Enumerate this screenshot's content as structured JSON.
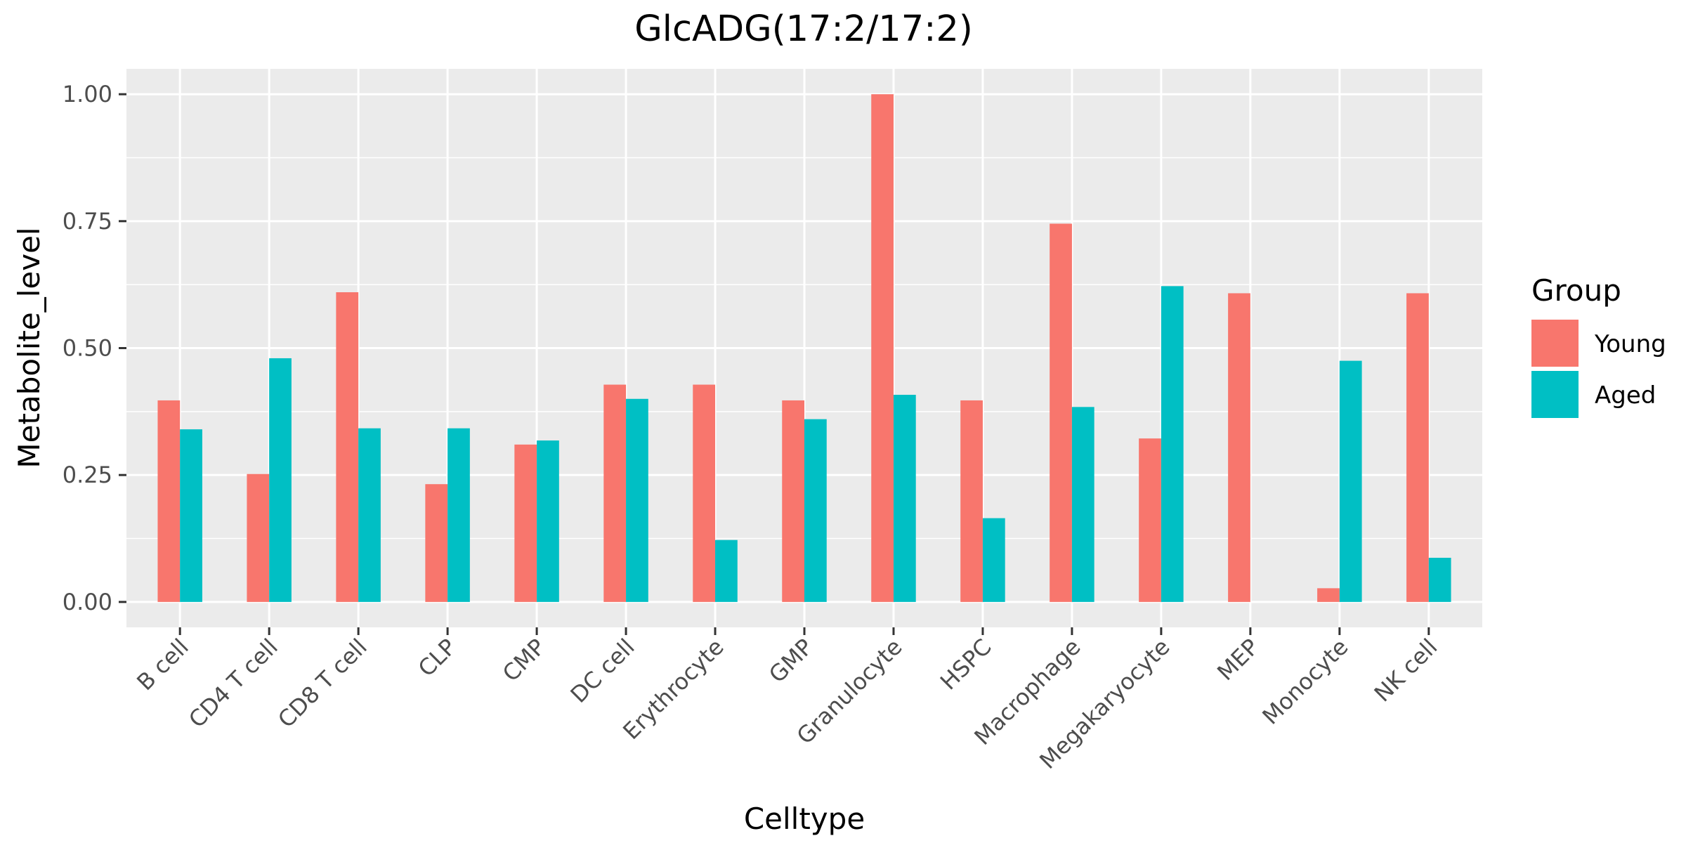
{
  "chart_data": {
    "type": "bar",
    "title": "GlcADG(17:2/17:2)",
    "xlabel": "Celltype",
    "ylabel": "Metabolite_level",
    "ylim": [
      -0.05,
      1.05
    ],
    "yticks": [
      0.0,
      0.25,
      0.5,
      0.75,
      1.0
    ],
    "ytick_labels": [
      "0.00",
      "0.25",
      "0.50",
      "0.75",
      "1.00"
    ],
    "grid": true,
    "legend": {
      "title": "Group",
      "position": "right"
    },
    "categories": [
      "B cell",
      "CD4 T cell",
      "CD8 T cell",
      "CLP",
      "CMP",
      "DC cell",
      "Erythrocyte",
      "GMP",
      "Granulocyte",
      "HSPC",
      "Macrophage",
      "Megakaryocyte",
      "MEP",
      "Monocyte",
      "NK cell"
    ],
    "series": [
      {
        "name": "Young",
        "color": "#F8766D",
        "values": [
          0.397,
          0.252,
          0.61,
          0.232,
          0.31,
          0.428,
          0.428,
          0.397,
          1.0,
          0.397,
          0.745,
          0.322,
          0.608,
          0.027,
          0.608
        ]
      },
      {
        "name": "Aged",
        "color": "#00BFC4",
        "values": [
          0.34,
          0.48,
          0.342,
          0.342,
          0.318,
          0.4,
          0.122,
          0.36,
          0.408,
          0.165,
          0.384,
          0.622,
          0.0,
          0.475,
          0.087
        ]
      }
    ]
  }
}
